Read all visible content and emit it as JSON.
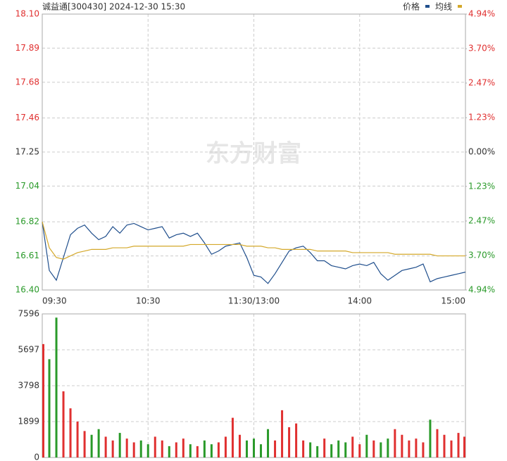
{
  "chart_data": [
    {
      "type": "line",
      "title": "诚益通[300430] 2024-12-30 15:30",
      "watermark": "东方财富",
      "x": [
        0,
        4,
        8,
        12,
        16,
        20,
        24,
        28,
        32,
        36,
        40,
        44,
        48,
        52,
        56,
        60,
        64,
        68,
        72,
        76,
        80,
        84,
        88,
        92,
        96,
        100,
        104,
        108,
        112,
        116,
        120,
        124,
        128,
        132,
        136,
        140,
        144,
        148,
        152,
        156,
        160,
        164,
        168,
        172,
        176,
        180,
        184,
        188,
        192,
        196,
        200,
        204,
        208,
        212,
        216,
        220,
        224,
        228,
        232,
        236,
        240
      ],
      "xlim": [
        0,
        240
      ],
      "xticks": [
        {
          "value": 0,
          "label": "09:30"
        },
        {
          "value": 60,
          "label": "10:30"
        },
        {
          "value": 120,
          "label": "11:30/13:00"
        },
        {
          "value": 180,
          "label": "14:00"
        },
        {
          "value": 240,
          "label": "15:00"
        }
      ],
      "ylim": [
        16.4,
        18.1
      ],
      "yticks": [
        {
          "value": 16.4,
          "label": "16.40"
        },
        16.61,
        16.82,
        17.04,
        17.25,
        17.46,
        17.68,
        17.89,
        {
          "value": 18.1,
          "label": "18.10"
        }
      ],
      "y2lim": [
        -4.94,
        4.94
      ],
      "y2ticks": [
        {
          "value": -4.94,
          "label": "4.94%"
        },
        {
          "value": -3.7,
          "label": "3.70%"
        },
        {
          "value": -2.47,
          "label": "2.47%"
        },
        {
          "value": -1.23,
          "label": "1.23%"
        },
        {
          "value": 0,
          "label": "0.00%"
        },
        {
          "value": 1.23,
          "label": "1.23%"
        },
        {
          "value": 2.47,
          "label": "2.47%"
        },
        {
          "value": 3.7,
          "label": "3.70%"
        },
        {
          "value": 4.94,
          "label": "4.94%"
        }
      ],
      "grid": true,
      "series": [
        {
          "name": "价格",
          "color": "#1f4e8c",
          "values": [
            16.82,
            16.52,
            16.46,
            16.6,
            16.74,
            16.78,
            16.8,
            16.75,
            16.71,
            16.73,
            16.79,
            16.75,
            16.8,
            16.81,
            16.79,
            16.77,
            16.78,
            16.79,
            16.72,
            16.74,
            16.75,
            16.73,
            16.75,
            16.69,
            16.62,
            16.64,
            16.67,
            16.68,
            16.69,
            16.6,
            16.49,
            16.48,
            16.44,
            16.5,
            16.57,
            16.64,
            16.66,
            16.67,
            16.63,
            16.58,
            16.58,
            16.55,
            16.54,
            16.53,
            16.55,
            16.56,
            16.55,
            16.57,
            16.5,
            16.46,
            16.49,
            16.52,
            16.53,
            16.54,
            16.56,
            16.45,
            16.47,
            16.48,
            16.49,
            16.5,
            16.51
          ]
        },
        {
          "name": "均线",
          "color": "#d4a82a",
          "values": [
            16.82,
            16.66,
            16.6,
            16.59,
            16.61,
            16.63,
            16.64,
            16.65,
            16.65,
            16.65,
            16.66,
            16.66,
            16.66,
            16.67,
            16.67,
            16.67,
            16.67,
            16.67,
            16.67,
            16.67,
            16.67,
            16.68,
            16.68,
            16.68,
            16.68,
            16.68,
            16.68,
            16.68,
            16.68,
            16.67,
            16.67,
            16.67,
            16.66,
            16.66,
            16.65,
            16.65,
            16.65,
            16.65,
            16.65,
            16.64,
            16.64,
            16.64,
            16.64,
            16.64,
            16.63,
            16.63,
            16.63,
            16.63,
            16.63,
            16.63,
            16.62,
            16.62,
            16.62,
            16.62,
            16.62,
            16.62,
            16.61,
            16.61,
            16.61,
            16.61,
            16.61
          ]
        }
      ]
    },
    {
      "type": "bar",
      "x": [
        0,
        4,
        8,
        12,
        16,
        20,
        24,
        28,
        32,
        36,
        40,
        44,
        48,
        52,
        56,
        60,
        64,
        68,
        72,
        76,
        80,
        84,
        88,
        92,
        96,
        100,
        104,
        108,
        112,
        116,
        120,
        124,
        128,
        132,
        136,
        140,
        144,
        148,
        152,
        156,
        160,
        164,
        168,
        172,
        176,
        180,
        184,
        188,
        192,
        196,
        200,
        204,
        208,
        212,
        216,
        220,
        224,
        228,
        232,
        236,
        240
      ],
      "xlim": [
        0,
        240
      ],
      "ylim": [
        0,
        7596
      ],
      "yticks": [
        0,
        1899,
        3798,
        5697,
        7596
      ],
      "grid": true,
      "up_color": "#e03030",
      "down_color": "#2a9a2a",
      "values": [
        6000,
        5200,
        7400,
        3500,
        2600,
        1900,
        1400,
        1200,
        1500,
        1100,
        900,
        1300,
        1000,
        800,
        900,
        700,
        1100,
        900,
        600,
        800,
        1000,
        700,
        600,
        900,
        700,
        800,
        1100,
        2100,
        1200,
        900,
        1000,
        700,
        1500,
        900,
        2500,
        1600,
        1800,
        900,
        800,
        600,
        1000,
        700,
        900,
        800,
        1100,
        700,
        1200,
        900,
        800,
        1000,
        1500,
        1200,
        900,
        1000,
        800,
        2000,
        1500,
        1200,
        900,
        1300,
        1100
      ]
    }
  ]
}
